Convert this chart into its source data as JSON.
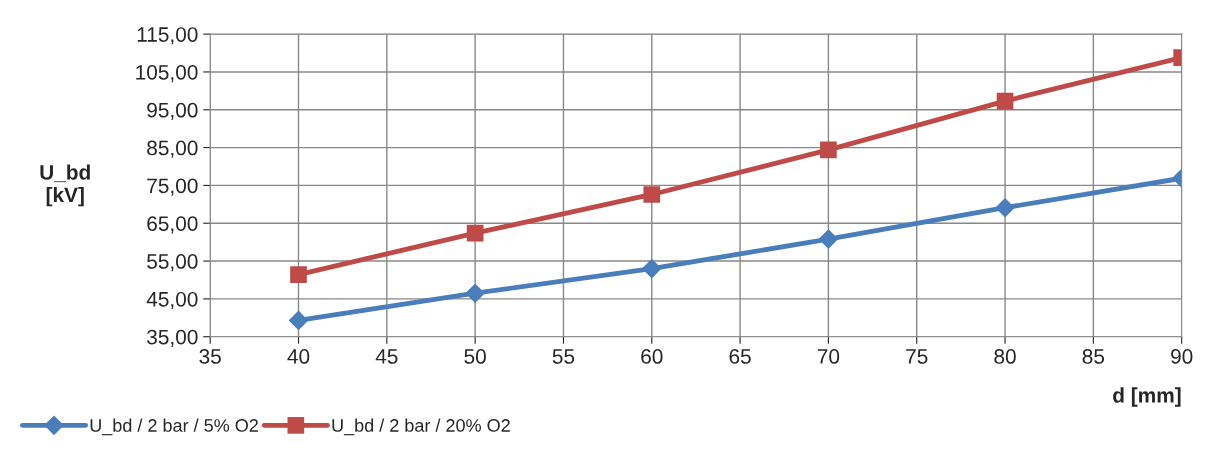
{
  "chart_data": {
    "type": "line",
    "xlabel": "d [mm]",
    "ylabel": "U_bd\n[kV]",
    "x": [
      40,
      50,
      60,
      70,
      80,
      90
    ],
    "series": [
      {
        "name": "U_bd / 2 bar / 5% O2",
        "color": "#4a7ebb",
        "marker": "diamond",
        "values": [
          39.3,
          46.5,
          53.0,
          60.8,
          69.1,
          76.9
        ]
      },
      {
        "name": "U_bd / 2 bar / 20% O2",
        "color": "#be4b48",
        "marker": "square",
        "values": [
          51.4,
          62.4,
          72.6,
          84.4,
          97.3,
          108.8
        ]
      }
    ],
    "xlim": [
      35,
      90
    ],
    "xticks": [
      35,
      40,
      45,
      50,
      55,
      60,
      65,
      70,
      75,
      80,
      85,
      90
    ],
    "ylim": [
      35,
      115
    ],
    "yticks": [
      {
        "value": 35,
        "label": "35,00"
      },
      {
        "value": 45,
        "label": "45,00"
      },
      {
        "value": 55,
        "label": "55,00"
      },
      {
        "value": 65,
        "label": "65,00"
      },
      {
        "value": 75,
        "label": "75,00"
      },
      {
        "value": 85,
        "label": "85,00"
      },
      {
        "value": 95,
        "label": "95,00"
      },
      {
        "value": 105,
        "label": "105,00"
      },
      {
        "value": 115,
        "label": "115,00"
      }
    ],
    "grid": true,
    "legend": "bottom left",
    "line_style": "solid"
  }
}
